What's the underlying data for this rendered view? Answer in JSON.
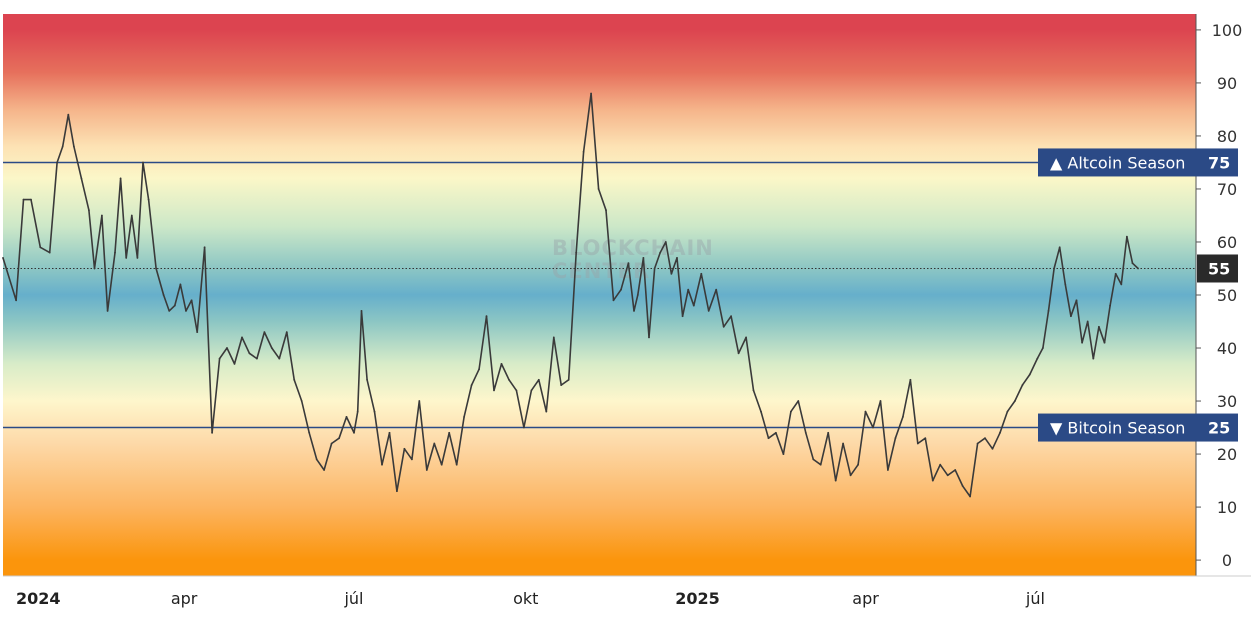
{
  "watermark": {
    "line1": "BLOCKCHAIN",
    "line2": "CENTER"
  },
  "chart_data": {
    "type": "line",
    "title": "",
    "xlabel": "",
    "ylabel": "",
    "ylim": [
      -3,
      103
    ],
    "y_ticks": [
      0,
      10,
      20,
      30,
      40,
      50,
      60,
      70,
      80,
      90,
      100
    ],
    "x_range": [
      "2023-12-26",
      "2025-09-25"
    ],
    "x_ticks": [
      {
        "date": "2024-01-01",
        "label": "2024",
        "bold": true
      },
      {
        "date": "2024-04-01",
        "label": "apr",
        "bold": false
      },
      {
        "date": "2024-07-01",
        "label": "júl",
        "bold": false
      },
      {
        "date": "2024-10-01",
        "label": "okt",
        "bold": false
      },
      {
        "date": "2025-01-01",
        "label": "2025",
        "bold": true
      },
      {
        "date": "2025-04-01",
        "label": "apr",
        "bold": false
      },
      {
        "date": "2025-07-01",
        "label": "júl",
        "bold": false
      }
    ],
    "reference_lines": [
      {
        "value": 75,
        "label": "▲ Altcoin Season",
        "badge": "75",
        "color": "#2b4a86"
      },
      {
        "value": 25,
        "label": "▼ Bitcoin Season",
        "badge": "25",
        "color": "#2b4a86"
      }
    ],
    "current_value": {
      "value": 55,
      "badge": "55"
    },
    "background_gradient": [
      {
        "value": 100,
        "color": "#dc4450"
      },
      {
        "value": 92,
        "color": "#e6705c"
      },
      {
        "value": 85,
        "color": "#f5b48a"
      },
      {
        "value": 78,
        "color": "#fde2b4"
      },
      {
        "value": 72,
        "color": "#fbf7c8"
      },
      {
        "value": 63,
        "color": "#cde8c8"
      },
      {
        "value": 55,
        "color": "#8cc6c4"
      },
      {
        "value": 50,
        "color": "#66afcb"
      },
      {
        "value": 45,
        "color": "#8cc6c4"
      },
      {
        "value": 37,
        "color": "#d8ecc8"
      },
      {
        "value": 30,
        "color": "#fef6cc"
      },
      {
        "value": 22,
        "color": "#fdd9a8"
      },
      {
        "value": 10,
        "color": "#fcb460"
      },
      {
        "value": 0,
        "color": "#fb950c"
      }
    ],
    "series": [
      {
        "line_color": "#3a3a3a",
        "x": [
          "2023-12-26",
          "2024-01-02",
          "2024-01-06",
          "2024-01-10",
          "2024-01-15",
          "2024-01-20",
          "2024-01-24",
          "2024-01-27",
          "2024-01-30",
          "2024-02-02",
          "2024-02-06",
          "2024-02-10",
          "2024-02-13",
          "2024-02-17",
          "2024-02-20",
          "2024-02-24",
          "2024-02-27",
          "2024-03-01",
          "2024-03-04",
          "2024-03-07",
          "2024-03-10",
          "2024-03-13",
          "2024-03-17",
          "2024-03-21",
          "2024-03-24",
          "2024-03-27",
          "2024-03-30",
          "2024-04-02",
          "2024-04-05",
          "2024-04-08",
          "2024-04-12",
          "2024-04-16",
          "2024-04-20",
          "2024-04-24",
          "2024-04-28",
          "2024-05-02",
          "2024-05-06",
          "2024-05-10",
          "2024-05-14",
          "2024-05-18",
          "2024-05-22",
          "2024-05-26",
          "2024-05-30",
          "2024-06-03",
          "2024-06-07",
          "2024-06-11",
          "2024-06-15",
          "2024-06-19",
          "2024-06-23",
          "2024-06-27",
          "2024-07-01",
          "2024-07-03",
          "2024-07-05",
          "2024-07-08",
          "2024-07-12",
          "2024-07-16",
          "2024-07-20",
          "2024-07-24",
          "2024-07-28",
          "2024-08-01",
          "2024-08-05",
          "2024-08-09",
          "2024-08-13",
          "2024-08-17",
          "2024-08-21",
          "2024-08-25",
          "2024-08-29",
          "2024-09-02",
          "2024-09-06",
          "2024-09-10",
          "2024-09-14",
          "2024-09-18",
          "2024-09-22",
          "2024-09-26",
          "2024-09-30",
          "2024-10-04",
          "2024-10-08",
          "2024-10-12",
          "2024-10-16",
          "2024-10-20",
          "2024-10-24",
          "2024-10-28",
          "2024-11-01",
          "2024-11-05",
          "2024-11-09",
          "2024-11-13",
          "2024-11-17",
          "2024-11-21",
          "2024-11-25",
          "2024-11-28",
          "2024-11-30",
          "2024-12-03",
          "2024-12-06",
          "2024-12-09",
          "2024-12-12",
          "2024-12-15",
          "2024-12-18",
          "2024-12-21",
          "2024-12-24",
          "2024-12-27",
          "2024-12-30",
          "2025-01-03",
          "2025-01-07",
          "2025-01-11",
          "2025-01-15",
          "2025-01-19",
          "2025-01-23",
          "2025-01-27",
          "2025-01-31",
          "2025-02-04",
          "2025-02-08",
          "2025-02-12",
          "2025-02-16",
          "2025-02-20",
          "2025-02-24",
          "2025-02-28",
          "2025-03-04",
          "2025-03-08",
          "2025-03-12",
          "2025-03-16",
          "2025-03-20",
          "2025-03-24",
          "2025-03-28",
          "2025-04-01",
          "2025-04-05",
          "2025-04-09",
          "2025-04-13",
          "2025-04-17",
          "2025-04-21",
          "2025-04-25",
          "2025-04-29",
          "2025-05-03",
          "2025-05-07",
          "2025-05-11",
          "2025-05-15",
          "2025-05-19",
          "2025-05-23",
          "2025-05-27",
          "2025-05-31",
          "2025-06-04",
          "2025-06-08",
          "2025-06-12",
          "2025-06-16",
          "2025-06-20",
          "2025-06-24",
          "2025-06-28",
          "2025-07-02",
          "2025-07-05",
          "2025-07-08",
          "2025-07-11",
          "2025-07-14",
          "2025-07-17",
          "2025-07-20",
          "2025-07-23",
          "2025-07-26",
          "2025-07-29",
          "2025-08-01",
          "2025-08-04",
          "2025-08-07",
          "2025-08-10",
          "2025-08-13",
          "2025-08-16",
          "2025-08-19",
          "2025-08-22",
          "2025-08-25"
        ],
        "y": [
          57,
          49,
          68,
          68,
          59,
          58,
          75,
          78,
          84,
          78,
          72,
          66,
          55,
          65,
          47,
          58,
          72,
          57,
          65,
          57,
          75,
          68,
          55,
          50,
          47,
          48,
          52,
          47,
          49,
          43,
          59,
          24,
          38,
          40,
          37,
          42,
          39,
          38,
          43,
          40,
          38,
          43,
          34,
          30,
          24,
          19,
          17,
          22,
          23,
          27,
          24,
          28,
          47,
          34,
          28,
          18,
          24,
          13,
          21,
          19,
          30,
          17,
          22,
          18,
          24,
          18,
          27,
          33,
          36,
          46,
          32,
          37,
          34,
          32,
          25,
          32,
          34,
          28,
          42,
          33,
          34,
          58,
          77,
          88,
          70,
          66,
          49,
          51,
          56,
          47,
          50,
          57,
          42,
          55,
          58,
          60,
          54,
          57,
          46,
          51,
          48,
          54,
          47,
          51,
          44,
          46,
          39,
          42,
          32,
          28,
          23,
          24,
          20,
          28,
          30,
          24,
          19,
          18,
          24,
          15,
          22,
          16,
          18,
          28,
          25,
          30,
          17,
          23,
          27,
          34,
          22,
          23,
          15,
          18,
          16,
          17,
          14,
          12,
          22,
          23,
          21,
          24,
          28,
          30,
          33,
          35,
          38,
          40,
          47,
          55,
          59,
          52,
          46,
          49,
          41,
          45,
          38,
          44,
          41,
          48,
          54,
          52,
          61,
          56,
          55
        ]
      }
    ]
  }
}
